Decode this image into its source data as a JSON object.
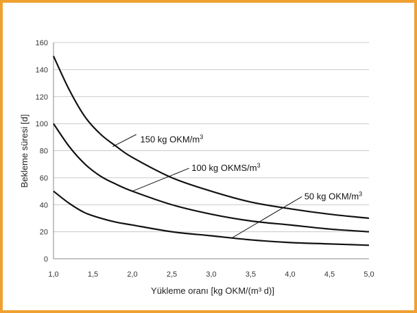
{
  "chart_data": {
    "type": "line",
    "title": "",
    "xlabel": "Yükleme oranı [kg OKM/(m³ d)]",
    "ylabel": "Bekleme süresi [d]",
    "xlim": [
      1.0,
      5.0
    ],
    "ylim": [
      0,
      160
    ],
    "xticks": [
      "1,0",
      "1,5",
      "2,0",
      "2,5",
      "3,0",
      "3,5",
      "4,0",
      "4,5",
      "5,0"
    ],
    "yticks": [
      "0",
      "20",
      "40",
      "60",
      "80",
      "100",
      "120",
      "140",
      "160"
    ],
    "grid": true,
    "line_color": "#111111",
    "grid_color": "#c8c8c8",
    "series": [
      {
        "x": [
          1.0,
          1.2,
          1.4,
          1.6,
          1.8,
          2.0,
          2.5,
          3.0,
          3.5,
          4.0,
          4.5,
          5.0
        ],
        "values": [
          150,
          125,
          105,
          92,
          83,
          75,
          60,
          50,
          42,
          37,
          33,
          30
        ]
      },
      {
        "x": [
          1.0,
          1.2,
          1.4,
          1.6,
          1.8,
          2.0,
          2.5,
          3.0,
          3.5,
          4.0,
          4.5,
          5.0
        ],
        "values": [
          100,
          83,
          70,
          61,
          55,
          50,
          40,
          33,
          28,
          25,
          22,
          20
        ]
      },
      {
        "x": [
          1.0,
          1.2,
          1.4,
          1.6,
          1.8,
          2.0,
          2.5,
          3.0,
          3.5,
          4.0,
          4.5,
          5.0
        ],
        "values": [
          50,
          41,
          34,
          30,
          27,
          25,
          20,
          17,
          14,
          12,
          11,
          10
        ]
      }
    ],
    "annotations": [
      {
        "main": "150 kg OKM/m",
        "sup": "3",
        "x": 2.1,
        "y": 86,
        "point_x": 1.75,
        "point_y": 83,
        "text_anchor_x": 2.05,
        "text_anchor_y": 92
      },
      {
        "main": "100 kg OKMS/m",
        "sup": "3",
        "x": 2.75,
        "y": 65,
        "point_x": 2.0,
        "point_y": 50,
        "text_anchor_x": 2.72,
        "text_anchor_y": 67
      },
      {
        "main": "50 kg OKM/m",
        "sup": "3",
        "x": 4.18,
        "y": 44,
        "point_x": 3.25,
        "point_y": 15,
        "text_anchor_x": 4.15,
        "text_anchor_y": 46
      }
    ]
  }
}
